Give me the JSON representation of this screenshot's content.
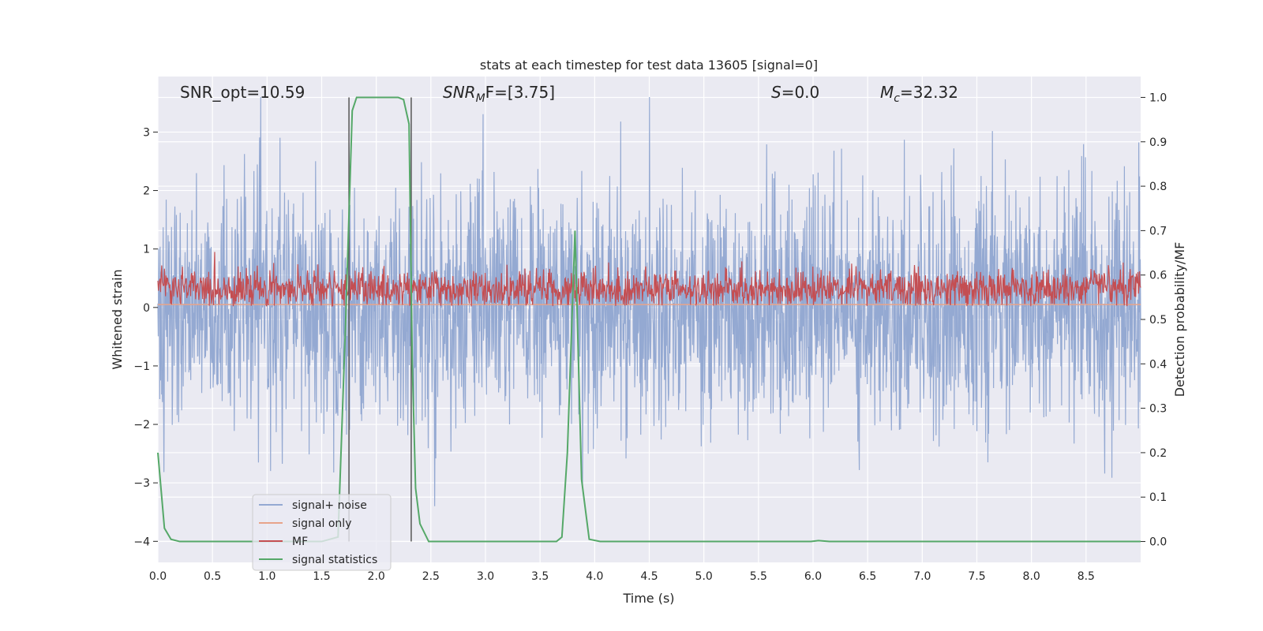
{
  "chart_data": {
    "type": "line",
    "title": "stats at each timestep for test data 13605 [signal=0]",
    "xlabel": "Time (s)",
    "ylabel_left": "Whitened strain",
    "ylabel_right": "Detection probability/MF",
    "xlim": [
      0.0,
      9.0
    ],
    "ylim_left": [
      -4.36,
      3.95
    ],
    "ylim_right": [
      -0.047,
      1.047
    ],
    "xticks": [
      "0.0",
      "0.5",
      "1.0",
      "1.5",
      "2.0",
      "2.5",
      "3.0",
      "3.5",
      "4.0",
      "4.5",
      "5.0",
      "5.5",
      "6.0",
      "6.5",
      "7.0",
      "7.5",
      "8.0",
      "8.5"
    ],
    "yticks_left": [
      "3",
      "2",
      "1",
      "0",
      "−1",
      "−2",
      "−3",
      "−4"
    ],
    "yticks_right": [
      "1.0",
      "0.9",
      "0.8",
      "0.7",
      "0.6",
      "0.5",
      "0.4",
      "0.3",
      "0.2",
      "0.1",
      "0.0"
    ],
    "annotations": {
      "snr_opt": "SNR_opt=10.59",
      "snr_mf_main": "SNR",
      "snr_mf_sub": "M",
      "snr_mf_rest": "F=[3.75]",
      "s_sym": "S",
      "s_val": "=0.0",
      "mc_sym": "M",
      "mc_sub": "c",
      "mc_val": "=32.32"
    },
    "vlines_x": [
      1.75,
      2.32
    ],
    "series": [
      {
        "name": "signal+ noise",
        "color": "#94a9d2",
        "axis": "left",
        "note": "broadband noise, amplitude approx ±2, extremes near -4 and 3.6"
      },
      {
        "name": "signal only",
        "color": "#e8a48a",
        "axis": "left",
        "values_const": 0.05
      },
      {
        "name": "MF",
        "color": "#c44e52",
        "axis": "left",
        "note": "noisy band approx 0.0 to 0.8"
      },
      {
        "name": "signal statistics",
        "color": "#55a868",
        "axis": "right",
        "x": [
          0.0,
          0.06,
          0.12,
          0.2,
          0.3,
          0.5,
          1.0,
          1.5,
          1.65,
          1.72,
          1.78,
          1.82,
          2.0,
          2.2,
          2.25,
          2.3,
          2.33,
          2.36,
          2.4,
          2.48,
          2.6,
          3.0,
          3.5,
          3.65,
          3.7,
          3.75,
          3.82,
          3.88,
          3.95,
          4.05,
          4.5,
          5.0,
          5.5,
          5.98,
          6.05,
          6.15,
          6.5,
          7.0,
          7.5,
          8.0,
          8.5,
          9.0
        ],
        "values": [
          0.2,
          0.03,
          0.005,
          0.0,
          0.0,
          0.0,
          0.0,
          0.0,
          0.01,
          0.5,
          0.97,
          1.0,
          1.0,
          1.0,
          0.995,
          0.94,
          0.4,
          0.12,
          0.04,
          0.0,
          0.0,
          0.0,
          0.0,
          0.0,
          0.01,
          0.2,
          0.7,
          0.14,
          0.005,
          0.0,
          0.0,
          0.0,
          0.0,
          0.0,
          0.002,
          0.0,
          0.0,
          0.0,
          0.0,
          0.0,
          0.0,
          0.0
        ]
      }
    ],
    "legend": {
      "placement": "lower-left",
      "entries": [
        "signal+ noise",
        "signal only",
        "MF",
        "signal statistics"
      ]
    }
  },
  "colors": {
    "plot_bg": "#eaeaf2",
    "grid": "#ffffff",
    "vline": "#555555"
  }
}
